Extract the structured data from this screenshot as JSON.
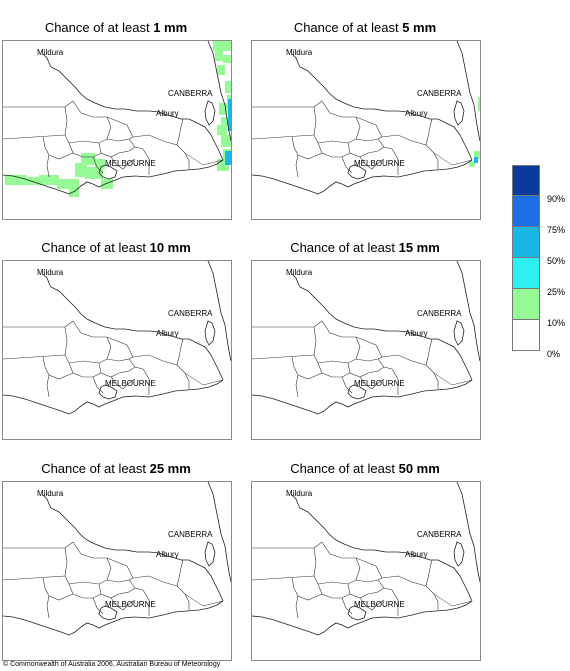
{
  "panels": [
    {
      "title_prefix": "Chance of at least ",
      "threshold": "1 mm",
      "id": "1mm",
      "rain_colors": "heavy"
    },
    {
      "title_prefix": "Chance of at least ",
      "threshold": "5 mm",
      "id": "5mm",
      "rain_colors": "light"
    },
    {
      "title_prefix": "Chance of at least ",
      "threshold": "10 mm",
      "id": "10mm",
      "rain_colors": "none"
    },
    {
      "title_prefix": "Chance of at least ",
      "threshold": "15 mm",
      "id": "15mm",
      "rain_colors": "none"
    },
    {
      "title_prefix": "Chance of at least ",
      "threshold": "25 mm",
      "id": "25mm",
      "rain_colors": "none"
    },
    {
      "title_prefix": "Chance of at least ",
      "threshold": "50 mm",
      "id": "50mm",
      "rain_colors": "none"
    }
  ],
  "places": {
    "mildura": "Mildura",
    "canberra": "CANBERRA",
    "albury": "Albury",
    "melbourne": "MELBOURNE"
  },
  "legend": {
    "labels": [
      "90%",
      "75%",
      "50%",
      "25%",
      "10%",
      "0%"
    ],
    "colors": [
      "#0a3a9a",
      "#1d6fe8",
      "#1ab6e8",
      "#2ef0f0",
      "#96fa96",
      "#ffffff"
    ]
  },
  "copyright": "© Commonwealth of Australia 2006, Australian Bureau of Meteorology"
}
